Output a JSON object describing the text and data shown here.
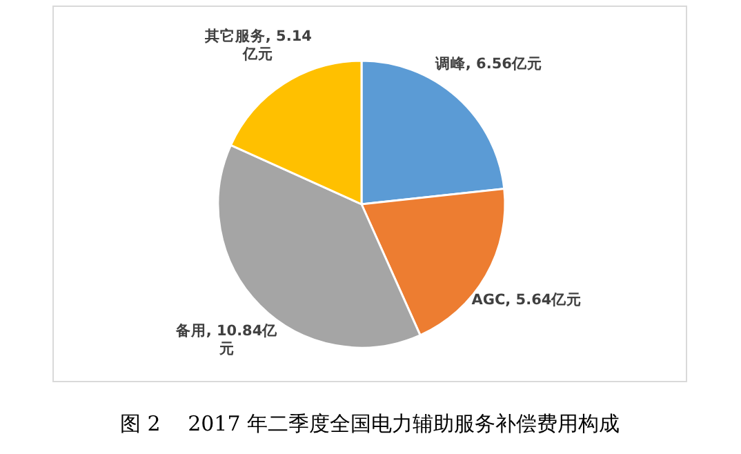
{
  "chart_data": {
    "type": "pie",
    "title": "图 2　 2017 年二季度全国电力辅助服务补偿费用构成",
    "categories": [
      "调峰",
      "AGC",
      "备用",
      "其它服务"
    ],
    "values": [
      6.56,
      5.64,
      10.84,
      5.14
    ],
    "value_labels": [
      "6.56亿元",
      "5.64亿元",
      "10.84亿元",
      "5.14亿元"
    ],
    "colors": [
      "#5b9bd5",
      "#ed7d31",
      "#a5a5a5",
      "#ffc000"
    ]
  }
}
